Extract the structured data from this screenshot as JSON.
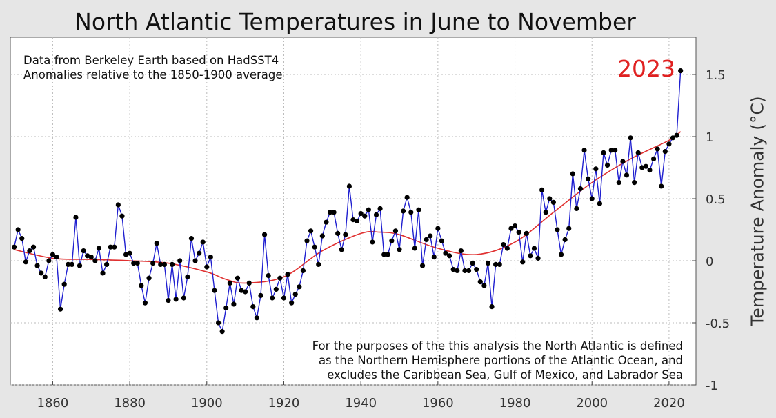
{
  "title": "North Atlantic Temperatures in June to November",
  "notes": {
    "source": "Data from Berkeley Earth based on HadSST4",
    "baseline": "Anomalies relative to the 1850-1900 average",
    "definition_1": "For the purposes of the this analysis the North Atlantic is defined",
    "definition_2": "as the Northern Hemisphere portions of the Atlantic Ocean, and",
    "definition_3": "excludes the Caribbean Sea, Gulf of Mexico, and Labrador Sea"
  },
  "highlight_label": "2023",
  "colors": {
    "series": "#1f1fd0",
    "trend": "#e03030",
    "points": "#000000",
    "highlight": "#e02020",
    "background": "#e6e6e6",
    "plot_bg": "#ffffff"
  },
  "chart_data": {
    "type": "line",
    "title": "North Atlantic Temperatures in June to November",
    "xlabel": "",
    "ylabel": "Temperature Anomaly (°C)",
    "xlim": [
      1849,
      2027
    ],
    "ylim": [
      -1,
      1.8
    ],
    "x_ticks": [
      1860,
      1880,
      1900,
      1920,
      1940,
      1960,
      1980,
      2000,
      2020
    ],
    "y_ticks": [
      -1,
      -0.5,
      0,
      0.5,
      1,
      1.5
    ],
    "y_tick_labels": [
      "-1",
      "-0.5",
      "0",
      "0.5",
      "1",
      "1.5"
    ],
    "grid": true,
    "y_axis_side": "right",
    "series": [
      {
        "type": "line+markers",
        "x_start": 1850,
        "values": [
          0.11,
          0.25,
          0.18,
          -0.01,
          0.08,
          0.11,
          -0.04,
          -0.1,
          -0.13,
          0.0,
          0.05,
          0.03,
          -0.39,
          -0.19,
          -0.03,
          -0.03,
          0.35,
          -0.04,
          0.08,
          0.04,
          0.03,
          0.0,
          0.1,
          -0.1,
          -0.03,
          0.11,
          0.11,
          0.45,
          0.36,
          0.05,
          0.06,
          -0.02,
          -0.02,
          -0.2,
          -0.34,
          -0.14,
          -0.02,
          0.14,
          -0.03,
          -0.03,
          -0.32,
          -0.03,
          -0.31,
          0.0,
          -0.3,
          -0.13,
          0.18,
          0.0,
          0.06,
          0.15,
          -0.05,
          0.03,
          -0.24,
          -0.5,
          -0.57,
          -0.38,
          -0.18,
          -0.35,
          -0.14,
          -0.24,
          -0.25,
          -0.18,
          -0.37,
          -0.46,
          -0.28,
          0.21,
          -0.12,
          -0.3,
          -0.23,
          -0.14,
          -0.3,
          -0.11,
          -0.34,
          -0.27,
          -0.21,
          -0.08,
          0.16,
          0.24,
          0.11,
          -0.03,
          0.2,
          0.31,
          0.39,
          0.39,
          0.22,
          0.09,
          0.21,
          0.6,
          0.33,
          0.32,
          0.38,
          0.36,
          0.41,
          0.15,
          0.37,
          0.42,
          0.05,
          0.05,
          0.16,
          0.24,
          0.09,
          0.4,
          0.51,
          0.39,
          0.1,
          0.41,
          -0.04,
          0.17,
          0.2,
          0.03,
          0.26,
          0.16,
          0.06,
          0.04,
          -0.07,
          -0.08,
          0.08,
          -0.08,
          -0.08,
          -0.02,
          -0.07,
          -0.17,
          -0.2,
          -0.02,
          -0.37,
          -0.03,
          -0.03,
          0.13,
          0.1,
          0.26,
          0.28,
          0.23,
          -0.01,
          0.22,
          0.04,
          0.1,
          0.02,
          0.57,
          0.39,
          0.5,
          0.47,
          0.25,
          0.05,
          0.17,
          0.26,
          0.7,
          0.42,
          0.58,
          0.89,
          0.66,
          0.5,
          0.74,
          0.46,
          0.87,
          0.77,
          0.89,
          0.89,
          0.63,
          0.8,
          0.69,
          0.99,
          0.63,
          0.87,
          0.75,
          0.76,
          0.73,
          0.82,
          0.9,
          0.6,
          0.88,
          0.94,
          0.99,
          1.01,
          1.53
        ]
      },
      {
        "type": "smooth_trend",
        "x": [
          1850,
          1860,
          1870,
          1880,
          1890,
          1900,
          1905,
          1910,
          1920,
          1930,
          1940,
          1945,
          1950,
          1960,
          1970,
          1980,
          1990,
          2000,
          2010,
          2020,
          2023
        ],
        "values": [
          0.09,
          0.02,
          0.01,
          0.0,
          -0.02,
          -0.09,
          -0.15,
          -0.18,
          -0.13,
          0.08,
          0.22,
          0.23,
          0.21,
          0.1,
          0.05,
          0.15,
          0.39,
          0.63,
          0.82,
          0.97,
          1.04
        ]
      }
    ]
  }
}
